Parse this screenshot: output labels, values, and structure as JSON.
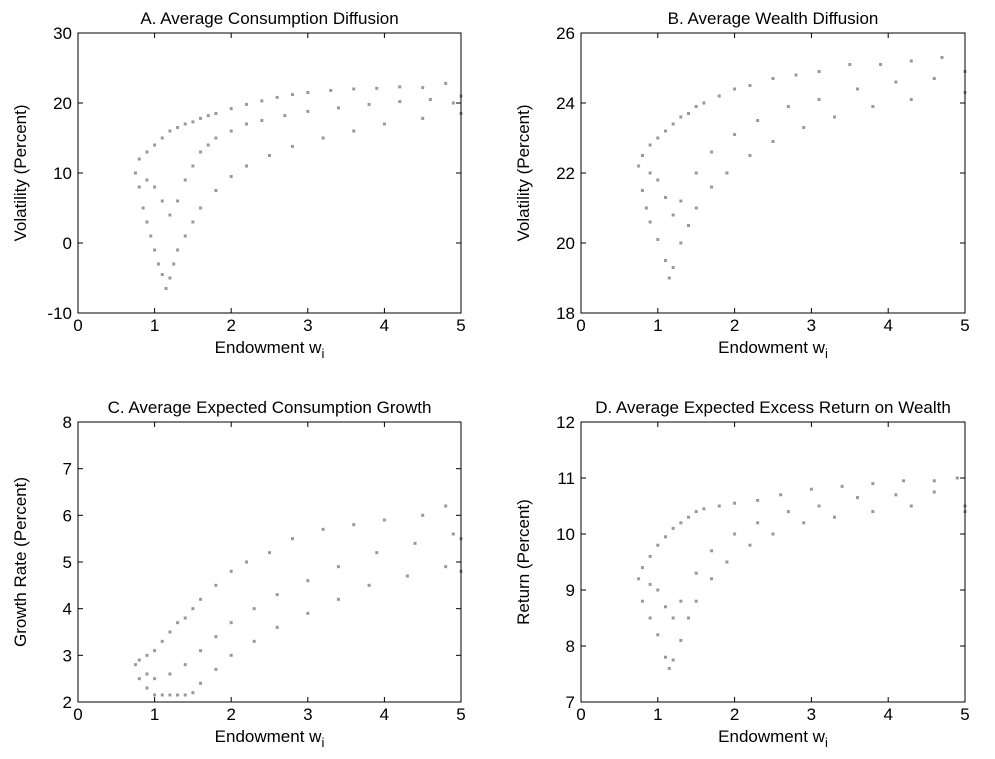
{
  "chart_data": [
    {
      "type": "scatter",
      "title": "A. Average Consumption Diffusion",
      "xlabel": "Endowment w",
      "xlabel_sub": "i",
      "ylabel": "Volatility (Percent)",
      "xlim": [
        0,
        5
      ],
      "ylim": [
        -10,
        30
      ],
      "xticks": [
        "0",
        "1",
        "2",
        "3",
        "4",
        "5"
      ],
      "yticks": [
        "-10",
        "0",
        "10",
        "20",
        "30"
      ],
      "grid": false,
      "marker_color": "#999999",
      "points": [
        [
          0.75,
          10
        ],
        [
          0.8,
          12
        ],
        [
          0.9,
          13
        ],
        [
          1.0,
          14
        ],
        [
          1.1,
          15
        ],
        [
          1.2,
          16
        ],
        [
          1.3,
          16.5
        ],
        [
          1.4,
          17
        ],
        [
          1.5,
          17.3
        ],
        [
          1.6,
          17.8
        ],
        [
          1.7,
          18.2
        ],
        [
          1.8,
          18.5
        ],
        [
          2.0,
          19.2
        ],
        [
          2.2,
          19.8
        ],
        [
          2.4,
          20.3
        ],
        [
          2.6,
          20.8
        ],
        [
          2.8,
          21.2
        ],
        [
          3.0,
          21.5
        ],
        [
          3.3,
          21.8
        ],
        [
          3.6,
          22
        ],
        [
          3.9,
          22.1
        ],
        [
          4.2,
          22.3
        ],
        [
          4.5,
          22.2
        ],
        [
          4.8,
          22.8
        ],
        [
          5.0,
          21
        ],
        [
          0.8,
          8
        ],
        [
          0.85,
          5
        ],
        [
          0.9,
          3
        ],
        [
          0.95,
          1
        ],
        [
          1.0,
          -1
        ],
        [
          1.05,
          -3
        ],
        [
          1.1,
          -4.5
        ],
        [
          1.15,
          -6.5
        ],
        [
          1.2,
          -5
        ],
        [
          1.25,
          -3
        ],
        [
          1.3,
          -1
        ],
        [
          1.4,
          1
        ],
        [
          1.5,
          3
        ],
        [
          1.6,
          5
        ],
        [
          1.8,
          7.5
        ],
        [
          2.0,
          9.5
        ],
        [
          2.2,
          11
        ],
        [
          2.5,
          12.5
        ],
        [
          2.8,
          13.8
        ],
        [
          3.2,
          15
        ],
        [
          3.6,
          16
        ],
        [
          4.0,
          17
        ],
        [
          4.5,
          17.8
        ],
        [
          5.0,
          18.5
        ],
        [
          0.9,
          9
        ],
        [
          1.0,
          8
        ],
        [
          1.1,
          6
        ],
        [
          1.2,
          4
        ],
        [
          1.3,
          6
        ],
        [
          1.4,
          9
        ],
        [
          1.5,
          11
        ],
        [
          1.6,
          13
        ],
        [
          1.7,
          14
        ],
        [
          1.8,
          15
        ],
        [
          2.0,
          16
        ],
        [
          2.2,
          17
        ],
        [
          2.4,
          17.5
        ],
        [
          2.7,
          18.2
        ],
        [
          3.0,
          18.8
        ],
        [
          3.4,
          19.3
        ],
        [
          3.8,
          19.8
        ],
        [
          4.2,
          20.2
        ],
        [
          4.6,
          20.5
        ],
        [
          4.9,
          20
        ]
      ]
    },
    {
      "type": "scatter",
      "title": "B. Average Wealth Diffusion",
      "xlabel": "Endowment w",
      "xlabel_sub": "i",
      "ylabel": "Volatility (Percent)",
      "xlim": [
        0,
        5
      ],
      "ylim": [
        18,
        26
      ],
      "xticks": [
        "0",
        "1",
        "2",
        "3",
        "4",
        "5"
      ],
      "yticks": [
        "18",
        "20",
        "22",
        "24",
        "26"
      ],
      "grid": false,
      "marker_color": "#999999",
      "points": [
        [
          0.75,
          22.2
        ],
        [
          0.8,
          22.5
        ],
        [
          0.9,
          22.8
        ],
        [
          1.0,
          23
        ],
        [
          1.1,
          23.2
        ],
        [
          1.2,
          23.4
        ],
        [
          1.3,
          23.6
        ],
        [
          1.4,
          23.7
        ],
        [
          1.5,
          23.9
        ],
        [
          1.6,
          24
        ],
        [
          1.8,
          24.2
        ],
        [
          2.0,
          24.4
        ],
        [
          2.2,
          24.5
        ],
        [
          2.5,
          24.7
        ],
        [
          2.8,
          24.8
        ],
        [
          3.1,
          24.9
        ],
        [
          3.5,
          25.1
        ],
        [
          3.9,
          25.1
        ],
        [
          4.3,
          25.2
        ],
        [
          4.7,
          25.3
        ],
        [
          5.0,
          24.9
        ],
        [
          0.8,
          21.5
        ],
        [
          0.85,
          21
        ],
        [
          0.9,
          20.6
        ],
        [
          1.0,
          20.1
        ],
        [
          1.1,
          19.5
        ],
        [
          1.15,
          19
        ],
        [
          1.2,
          19.3
        ],
        [
          1.3,
          20
        ],
        [
          1.4,
          20.5
        ],
        [
          1.5,
          21
        ],
        [
          1.7,
          21.6
        ],
        [
          1.9,
          22
        ],
        [
          2.2,
          22.5
        ],
        [
          2.5,
          22.9
        ],
        [
          2.9,
          23.3
        ],
        [
          3.3,
          23.6
        ],
        [
          3.8,
          23.9
        ],
        [
          4.3,
          24.1
        ],
        [
          5.0,
          24.3
        ],
        [
          0.9,
          22
        ],
        [
          1.0,
          21.8
        ],
        [
          1.1,
          21.3
        ],
        [
          1.2,
          20.8
        ],
        [
          1.3,
          21.2
        ],
        [
          1.5,
          22
        ],
        [
          1.7,
          22.6
        ],
        [
          2.0,
          23.1
        ],
        [
          2.3,
          23.5
        ],
        [
          2.7,
          23.9
        ],
        [
          3.1,
          24.1
        ],
        [
          3.6,
          24.4
        ],
        [
          4.1,
          24.6
        ],
        [
          4.6,
          24.7
        ]
      ]
    },
    {
      "type": "scatter",
      "title": "C. Average Expected Consumption Growth",
      "xlabel": "Endowment w",
      "xlabel_sub": "i",
      "ylabel": "Growth Rate (Percent)",
      "xlim": [
        0,
        5
      ],
      "ylim": [
        2,
        8
      ],
      "xticks": [
        "0",
        "1",
        "2",
        "3",
        "4",
        "5"
      ],
      "yticks": [
        "2",
        "3",
        "4",
        "5",
        "6",
        "7",
        "8"
      ],
      "grid": false,
      "marker_color": "#999999",
      "points": [
        [
          0.75,
          2.8
        ],
        [
          0.8,
          2.9
        ],
        [
          0.9,
          3.0
        ],
        [
          1.0,
          3.1
        ],
        [
          1.1,
          3.3
        ],
        [
          1.2,
          3.5
        ],
        [
          1.3,
          3.7
        ],
        [
          1.4,
          3.8
        ],
        [
          1.5,
          4.0
        ],
        [
          1.6,
          4.2
        ],
        [
          1.8,
          4.5
        ],
        [
          2.0,
          4.8
        ],
        [
          2.2,
          5.0
        ],
        [
          2.5,
          5.2
        ],
        [
          2.8,
          5.5
        ],
        [
          3.2,
          5.7
        ],
        [
          3.6,
          5.8
        ],
        [
          4.0,
          5.9
        ],
        [
          4.5,
          6.0
        ],
        [
          4.8,
          6.2
        ],
        [
          5.0,
          5.5
        ],
        [
          0.8,
          2.5
        ],
        [
          0.9,
          2.3
        ],
        [
          1.0,
          2.15
        ],
        [
          1.1,
          2.15
        ],
        [
          1.2,
          2.15
        ],
        [
          1.3,
          2.15
        ],
        [
          1.4,
          2.15
        ],
        [
          1.5,
          2.2
        ],
        [
          1.6,
          2.4
        ],
        [
          1.8,
          2.7
        ],
        [
          2.0,
          3.0
        ],
        [
          2.3,
          3.3
        ],
        [
          2.6,
          3.6
        ],
        [
          3.0,
          3.9
        ],
        [
          3.4,
          4.2
        ],
        [
          3.8,
          4.5
        ],
        [
          4.3,
          4.7
        ],
        [
          4.8,
          4.9
        ],
        [
          5.0,
          4.8
        ],
        [
          0.9,
          2.6
        ],
        [
          1.0,
          2.5
        ],
        [
          1.2,
          2.6
        ],
        [
          1.4,
          2.8
        ],
        [
          1.6,
          3.1
        ],
        [
          1.8,
          3.4
        ],
        [
          2.0,
          3.7
        ],
        [
          2.3,
          4.0
        ],
        [
          2.6,
          4.3
        ],
        [
          3.0,
          4.6
        ],
        [
          3.4,
          4.9
        ],
        [
          3.9,
          5.2
        ],
        [
          4.4,
          5.4
        ],
        [
          4.9,
          5.6
        ]
      ]
    },
    {
      "type": "scatter",
      "title": "D. Average Expected Excess Return on Wealth",
      "xlabel": "Endowment w",
      "xlabel_sub": "i",
      "ylabel": "Return (Percent)",
      "xlim": [
        0,
        5
      ],
      "ylim": [
        7,
        12
      ],
      "xticks": [
        "0",
        "1",
        "2",
        "3",
        "4",
        "5"
      ],
      "yticks": [
        "7",
        "8",
        "9",
        "10",
        "11",
        "12"
      ],
      "grid": false,
      "marker_color": "#999999",
      "points": [
        [
          0.75,
          9.2
        ],
        [
          0.8,
          9.4
        ],
        [
          0.9,
          9.6
        ],
        [
          1.0,
          9.8
        ],
        [
          1.1,
          9.95
        ],
        [
          1.2,
          10.1
        ],
        [
          1.3,
          10.2
        ],
        [
          1.4,
          10.3
        ],
        [
          1.5,
          10.4
        ],
        [
          1.6,
          10.45
        ],
        [
          1.8,
          10.5
        ],
        [
          2.0,
          10.55
        ],
        [
          2.3,
          10.6
        ],
        [
          2.6,
          10.7
        ],
        [
          3.0,
          10.8
        ],
        [
          3.4,
          10.85
        ],
        [
          3.8,
          10.9
        ],
        [
          4.2,
          10.95
        ],
        [
          4.6,
          10.95
        ],
        [
          4.9,
          11.0
        ],
        [
          5.0,
          10.5
        ],
        [
          0.8,
          8.8
        ],
        [
          0.9,
          8.5
        ],
        [
          1.0,
          8.2
        ],
        [
          1.1,
          7.8
        ],
        [
          1.15,
          7.6
        ],
        [
          1.2,
          7.75
        ],
        [
          1.3,
          8.1
        ],
        [
          1.4,
          8.5
        ],
        [
          1.5,
          8.8
        ],
        [
          1.7,
          9.2
        ],
        [
          1.9,
          9.5
        ],
        [
          2.2,
          9.8
        ],
        [
          2.5,
          10.0
        ],
        [
          2.9,
          10.2
        ],
        [
          3.3,
          10.3
        ],
        [
          3.8,
          10.4
        ],
        [
          4.3,
          10.5
        ],
        [
          5.0,
          10.4
        ],
        [
          0.9,
          9.1
        ],
        [
          1.0,
          9.0
        ],
        [
          1.1,
          8.7
        ],
        [
          1.2,
          8.5
        ],
        [
          1.3,
          8.8
        ],
        [
          1.5,
          9.3
        ],
        [
          1.7,
          9.7
        ],
        [
          2.0,
          10.0
        ],
        [
          2.3,
          10.2
        ],
        [
          2.7,
          10.4
        ],
        [
          3.1,
          10.5
        ],
        [
          3.6,
          10.65
        ],
        [
          4.1,
          10.7
        ],
        [
          4.6,
          10.75
        ]
      ]
    }
  ]
}
